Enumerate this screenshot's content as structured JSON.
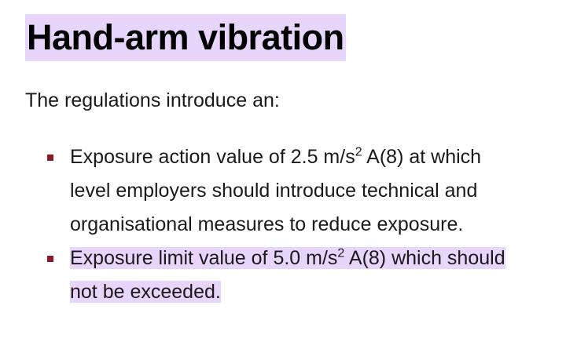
{
  "heading": "Hand-arm vibration",
  "intro": "The regulations introduce an:",
  "colors": {
    "highlight": "#e8d5fb",
    "bullet": "#8b1a2b"
  },
  "items": [
    {
      "pre": "Exposure action value of 2.5 m/s",
      "sup": "2",
      "post": " A(8) at which level employers should introduce technical and organisational measures to reduce exposure.",
      "highlighted": false
    },
    {
      "pre": "Exposure limit value of 5.0 m/s",
      "sup": "2",
      "post": " A(8) which should not be exceeded.",
      "highlighted": true
    }
  ]
}
